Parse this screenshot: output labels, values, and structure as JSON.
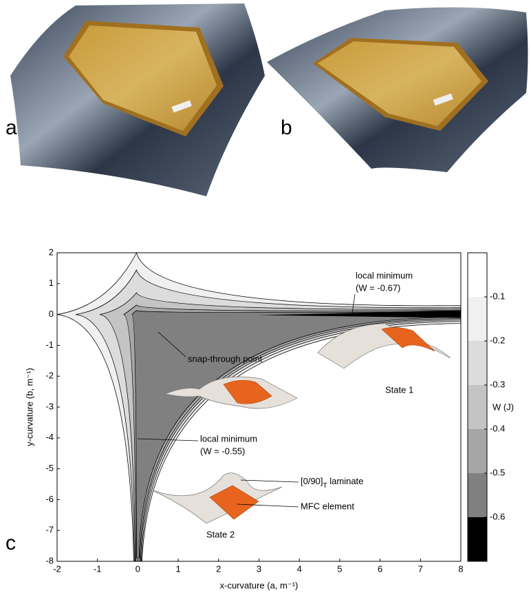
{
  "panel_labels": [
    "a",
    "b",
    "c"
  ],
  "chart_data": {
    "type": "contour",
    "xlabel": "x-curvature (a, m⁻¹)",
    "ylabel": "y-curvature (b, m⁻¹)",
    "xlim": [
      -2,
      8
    ],
    "xticks": [
      -2,
      -1,
      0,
      1,
      2,
      3,
      4,
      5,
      6,
      7,
      8
    ],
    "ylim": [
      -8,
      2
    ],
    "yticks": [
      -8,
      -7,
      -6,
      -5,
      -4,
      -3,
      -2,
      -1,
      0,
      1,
      2
    ],
    "colorbar": {
      "label": "W (J)",
      "lim": [
        -0.7,
        0
      ],
      "ticks": [
        -0.1,
        -0.2,
        -0.3,
        -0.4,
        -0.5,
        -0.6
      ],
      "colors": [
        "#ffffff",
        "#f0f0f0",
        "#dcdcdc",
        "#c4c4c4",
        "#a6a6a6",
        "#808080",
        "#000000"
      ]
    },
    "annotations": {
      "min1": "local minimum",
      "min1_value": "(W = -0.67)",
      "snap": "snap-through point",
      "state1": "State 1",
      "min2": "local minimum",
      "min2_value": "(W = -0.55)",
      "laminate": "[0/90]",
      "laminate_sub": "T",
      "laminate_suffix": " laminate",
      "mfc": "MFC element",
      "state2": "State 2"
    }
  }
}
